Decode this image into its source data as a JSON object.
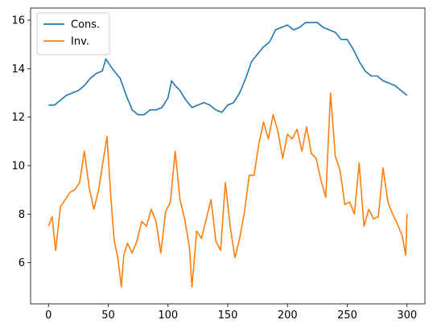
{
  "chart_data": {
    "type": "line",
    "title": "",
    "xlabel": "",
    "ylabel": "",
    "xlim": [
      -15,
      315
    ],
    "ylim": [
      4.3,
      16.5
    ],
    "x_ticks": [
      0,
      50,
      100,
      150,
      200,
      250,
      300
    ],
    "y_ticks": [
      6,
      8,
      10,
      12,
      14,
      16
    ],
    "grid": false,
    "legend_position": "top-left",
    "series": [
      {
        "name": "Cons.",
        "color": "#1f77b4",
        "x": [
          0,
          5,
          10,
          15,
          20,
          25,
          30,
          35,
          40,
          45,
          48,
          52,
          55,
          60,
          65,
          70,
          75,
          80,
          85,
          90,
          95,
          100,
          103,
          106,
          110,
          115,
          120,
          125,
          130,
          135,
          140,
          145,
          150,
          155,
          160,
          165,
          170,
          175,
          180,
          185,
          190,
          195,
          200,
          205,
          210,
          215,
          220,
          225,
          230,
          235,
          240,
          245,
          250,
          255,
          260,
          265,
          270,
          275,
          280,
          285,
          290,
          295,
          300
        ],
        "y": [
          12.5,
          12.5,
          12.7,
          12.9,
          13.0,
          13.1,
          13.3,
          13.6,
          13.8,
          13.9,
          14.4,
          14.1,
          13.9,
          13.6,
          12.9,
          12.3,
          12.1,
          12.1,
          12.3,
          12.3,
          12.4,
          12.8,
          13.5,
          13.3,
          13.1,
          12.7,
          12.4,
          12.5,
          12.6,
          12.5,
          12.3,
          12.2,
          12.5,
          12.6,
          13.0,
          13.6,
          14.3,
          14.6,
          14.9,
          15.1,
          15.6,
          15.7,
          15.8,
          15.6,
          15.7,
          15.9,
          15.9,
          15.9,
          15.7,
          15.6,
          15.5,
          15.2,
          15.2,
          14.8,
          14.3,
          13.9,
          13.7,
          13.7,
          13.5,
          13.4,
          13.3,
          13.1,
          12.9
        ]
      },
      {
        "name": "Inv.",
        "color": "#ff7f0e",
        "x": [
          0,
          3,
          6,
          10,
          14,
          18,
          22,
          26,
          30,
          34,
          38,
          42,
          46,
          49,
          52,
          55,
          58,
          61,
          63,
          66,
          70,
          74,
          78,
          82,
          86,
          90,
          94,
          98,
          102,
          106,
          110,
          114,
          118,
          120,
          124,
          128,
          132,
          136,
          140,
          144,
          148,
          152,
          156,
          160,
          164,
          168,
          172,
          176,
          180,
          184,
          188,
          192,
          196,
          200,
          204,
          208,
          212,
          216,
          220,
          224,
          228,
          232,
          236,
          240,
          244,
          248,
          252,
          256,
          260,
          264,
          268,
          272,
          276,
          280,
          284,
          288,
          292,
          296,
          299,
          300
        ],
        "y": [
          7.5,
          7.9,
          6.5,
          8.3,
          8.6,
          8.9,
          9.0,
          9.3,
          10.6,
          9.1,
          8.2,
          9.0,
          10.3,
          11.2,
          8.8,
          6.9,
          6.2,
          5.0,
          6.3,
          6.8,
          6.4,
          6.9,
          7.7,
          7.5,
          8.2,
          7.7,
          6.4,
          8.1,
          8.5,
          10.6,
          8.6,
          7.8,
          6.6,
          5.0,
          7.3,
          7.0,
          7.8,
          8.6,
          6.9,
          6.5,
          9.3,
          7.5,
          6.2,
          7.0,
          8.1,
          9.6,
          9.6,
          10.9,
          11.8,
          11.1,
          12.1,
          11.4,
          10.3,
          11.3,
          11.1,
          11.5,
          10.6,
          11.6,
          10.5,
          10.3,
          9.4,
          8.7,
          13.0,
          10.4,
          9.8,
          8.4,
          8.5,
          8.0,
          10.1,
          7.5,
          8.2,
          7.8,
          7.9,
          9.9,
          8.5,
          8.0,
          7.6,
          7.1,
          6.3,
          8.0
        ]
      }
    ]
  }
}
